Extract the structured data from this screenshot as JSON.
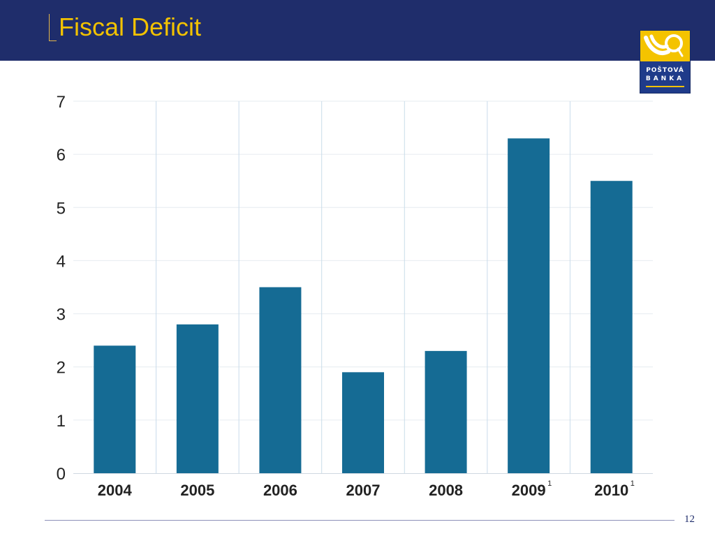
{
  "slide": {
    "title": "Fiscal Deficit",
    "page_number": "12",
    "colors": {
      "header": "#1f2d6b",
      "title": "#f2c200",
      "bar": "#156b94"
    }
  },
  "logo": {
    "line1": "POŠTOVÁ",
    "line2": "BANKA",
    "icon": "posthorn-icon"
  },
  "chart_data": {
    "type": "bar",
    "categories": [
      "2004",
      "2005",
      "2006",
      "2007",
      "2008",
      "2009",
      "2010"
    ],
    "category_superscripts": [
      "",
      "",
      "",
      "",
      "",
      "1",
      "1"
    ],
    "values": [
      2.4,
      2.8,
      3.5,
      1.9,
      2.3,
      6.3,
      5.5
    ],
    "title": "",
    "xlabel": "",
    "ylabel": "",
    "ylim": [
      0,
      7
    ],
    "yticks": [
      "0",
      "1",
      "2",
      "3",
      "4",
      "5",
      "6",
      "7"
    ],
    "grid": true,
    "bar_color": "#156b94"
  }
}
